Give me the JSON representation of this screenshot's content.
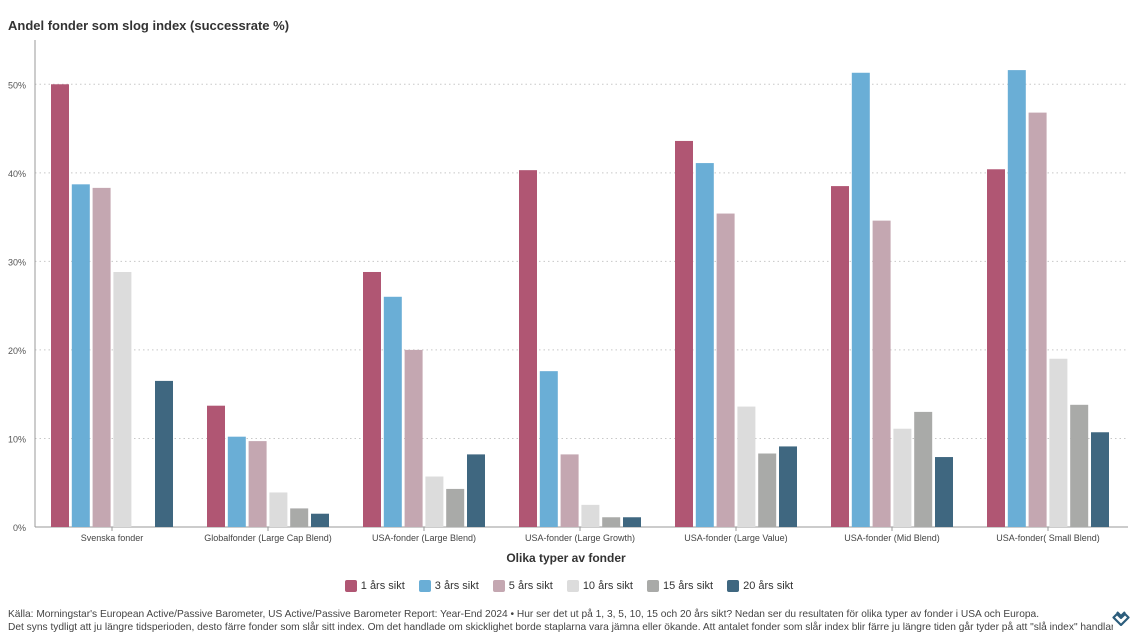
{
  "chart_data": {
    "type": "bar",
    "title": "Andel fonder som slog index (successrate %)",
    "xlabel": "Olika typer av fonder",
    "ylabel": "",
    "ylim": [
      0,
      55
    ],
    "yticks": [
      0,
      10,
      20,
      30,
      40,
      50
    ],
    "ytick_labels": [
      "0%",
      "10%",
      "20%",
      "30%",
      "40%",
      "50%"
    ],
    "grid": true,
    "legend_position": "bottom-center",
    "categories": [
      "Svenska fonder",
      "Globalfonder (Large Cap Blend)",
      "USA-fonder (Large Blend)",
      "USA-fonder (Large Growth)",
      "USA-fonder (Large Value)",
      "USA-fonder (Mid Blend)",
      "USA-fonder( Small Blend)"
    ],
    "series": [
      {
        "name": "1 års sikt",
        "color": "#b05673",
        "values": [
          50.0,
          13.7,
          28.8,
          40.3,
          43.6,
          38.5,
          40.4
        ]
      },
      {
        "name": "3 års sikt",
        "color": "#6aaed6",
        "values": [
          38.7,
          10.2,
          26.0,
          17.6,
          41.1,
          51.3,
          51.6
        ]
      },
      {
        "name": "5 års sikt",
        "color": "#c4a7b1",
        "values": [
          38.3,
          9.7,
          20.0,
          8.2,
          35.4,
          34.6,
          46.8
        ]
      },
      {
        "name": "10 års sikt",
        "color": "#dcdcdc",
        "values": [
          28.8,
          3.9,
          5.7,
          2.5,
          13.6,
          11.1,
          19.0
        ]
      },
      {
        "name": "15 års sikt",
        "color": "#a9aaa8",
        "values": [
          null,
          2.1,
          4.3,
          1.1,
          8.3,
          13.0,
          13.8
        ]
      },
      {
        "name": "20 års sikt",
        "color": "#3f6780",
        "values": [
          16.5,
          1.5,
          8.2,
          1.1,
          9.1,
          7.9,
          10.7
        ]
      }
    ]
  },
  "footnote": {
    "line1": "Källa: Morningstar's European Active/Passive Barometer, US Active/Passive Barometer Report: Year-End 2024 • Hur ser det ut på 1, 3, 5, 10, 15 och 20 års sikt? Nedan ser du resultaten för olika typer av fonder i USA och Europa.",
    "line2": "Det syns tydligt att ju längre tidsperioden, desto färre fonder som slår sitt index. Om det handlade om skicklighet borde staplarna vara jämna eller ökande. Att antalet fonder som slår index blir färre ju längre tiden går tyder på att \"slå index\" handlar om tur och inte skicklighet."
  },
  "logo": {
    "icon": "brand-logo-icon",
    "color": "#2c5d7c"
  }
}
